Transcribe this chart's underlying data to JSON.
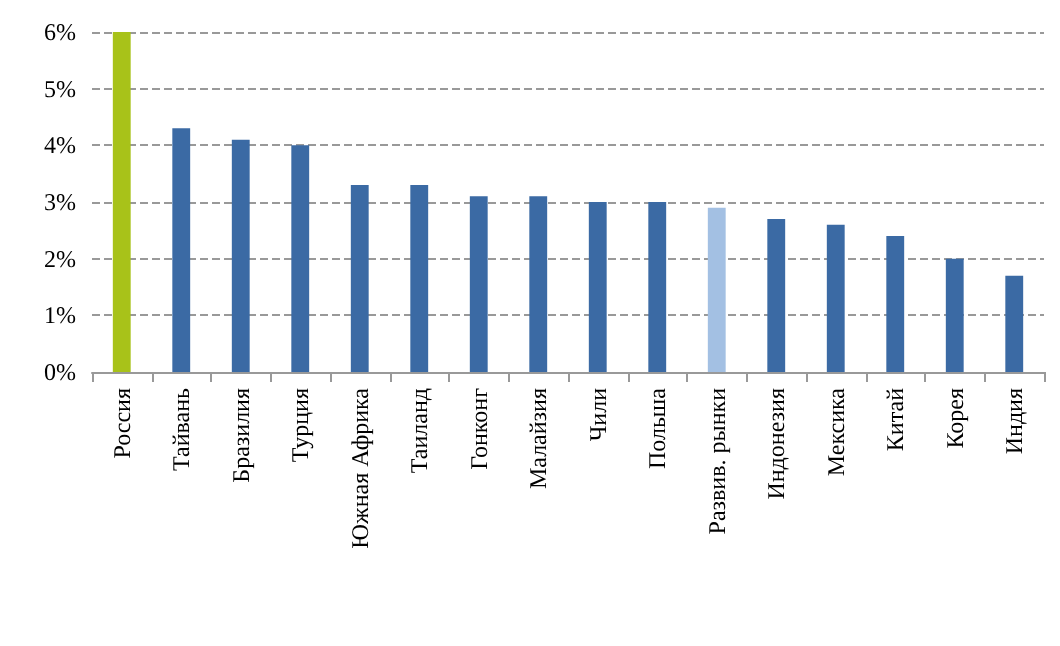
{
  "chart_data": {
    "type": "bar",
    "categories": [
      "Россия",
      "Тайвань",
      "Бразилия",
      "Турция",
      "Южная Африка",
      "Таиланд",
      "Гонконг",
      "Малайзия",
      "Чили",
      "Польша",
      "Развив. рынки",
      "Индонезия",
      "Мексика",
      "Китай",
      "Корея",
      "Индия"
    ],
    "values": [
      6,
      4.3,
      4.1,
      4.0,
      3.3,
      3.3,
      3.1,
      3.1,
      3.0,
      3.0,
      2.9,
      2.7,
      2.6,
      2.4,
      2.0,
      1.7
    ],
    "colors": [
      "#a8c219",
      "#3b6aa4",
      "#3b6aa4",
      "#3b6aa4",
      "#3b6aa4",
      "#3b6aa4",
      "#3b6aa4",
      "#3b6aa4",
      "#3b6aa4",
      "#3b6aa4",
      "#a3c0e3",
      "#3b6aa4",
      "#3b6aa4",
      "#3b6aa4",
      "#3b6aa4",
      "#3b6aa4"
    ],
    "ylim": [
      0,
      6
    ],
    "yticks": [
      {
        "value": 0,
        "label": "0%"
      },
      {
        "value": 1,
        "label": "1%"
      },
      {
        "value": 2,
        "label": "2%"
      },
      {
        "value": 3,
        "label": "3%"
      },
      {
        "value": 4,
        "label": "4%"
      },
      {
        "value": 5,
        "label": "5%"
      },
      {
        "value": 6,
        "label": "6%"
      }
    ],
    "grid": "y"
  }
}
